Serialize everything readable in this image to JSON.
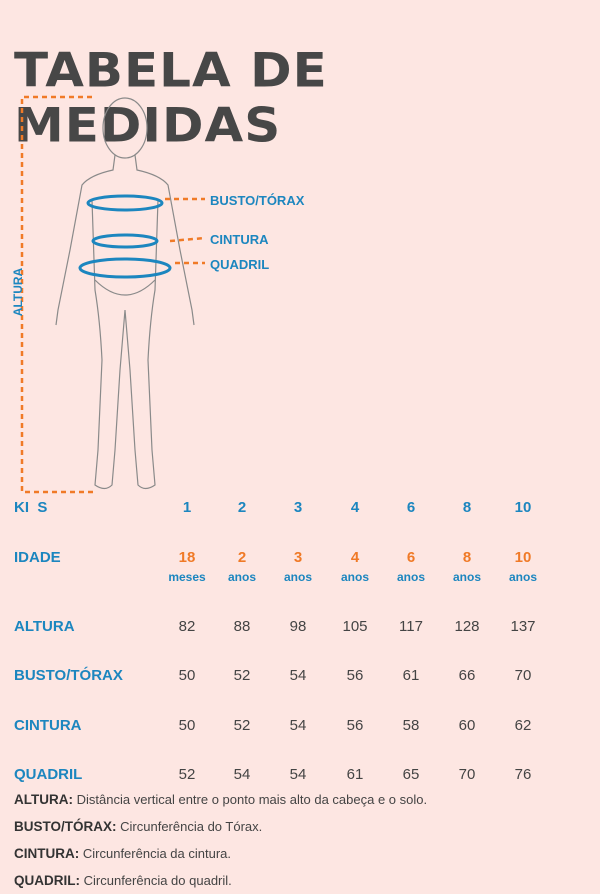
{
  "title": "TABELA DE MEDIDAS",
  "colors": {
    "background": "#fde6e2",
    "accent_blue": "#1c86bf",
    "accent_orange": "#f07a27",
    "title": "#474747"
  },
  "figure": {
    "labels": {
      "busto": "BUSTO/TÓRAX",
      "cintura": "CINTURA",
      "quadril": "QUADRIL",
      "altura": "ALTURA"
    }
  },
  "table": {
    "sizes_label": "KI  S",
    "sizes": [
      "1",
      "2",
      "3",
      "4",
      "6",
      "8",
      "10"
    ],
    "age_label": "IDADE",
    "ages": [
      {
        "n": "18",
        "u": "meses"
      },
      {
        "n": "2",
        "u": "anos"
      },
      {
        "n": "3",
        "u": "anos"
      },
      {
        "n": "4",
        "u": "anos"
      },
      {
        "n": "6",
        "u": "anos"
      },
      {
        "n": "8",
        "u": "anos"
      },
      {
        "n": "10",
        "u": "anos"
      }
    ],
    "rows": [
      {
        "label": "ALTURA",
        "values": [
          "82",
          "88",
          "98",
          "105",
          "117",
          "128",
          "137"
        ]
      },
      {
        "label": "BUSTO/TÓRAX",
        "values": [
          "50",
          "52",
          "54",
          "56",
          "61",
          "66",
          "70"
        ]
      },
      {
        "label": "CINTURA",
        "values": [
          "50",
          "52",
          "54",
          "56",
          "58",
          "60",
          "62"
        ]
      },
      {
        "label": "QUADRIL",
        "values": [
          "52",
          "54",
          "54",
          "61",
          "65",
          "70",
          "76"
        ]
      }
    ]
  },
  "definitions": [
    {
      "term": "ALTURA:",
      "text": "Distância vertical entre o ponto mais alto da cabeça e o solo."
    },
    {
      "term": "BUSTO/TÓRAX:",
      "text": "Circunferência do Tórax."
    },
    {
      "term": "CINTURA:",
      "text": "Circunferência da cintura."
    },
    {
      "term": "QUADRIL:",
      "text": "Circunferência do quadril."
    }
  ]
}
